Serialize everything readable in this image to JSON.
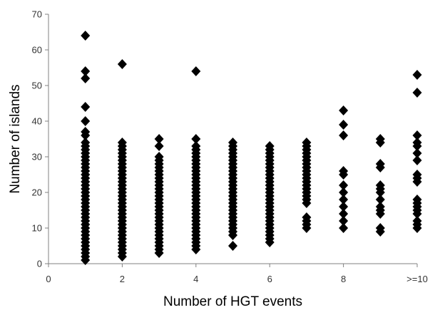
{
  "chart_data": {
    "type": "scatter",
    "title": "",
    "xlabel": "Number of HGT events",
    "ylabel": "Number of islands",
    "xlim": [
      0,
      10
    ],
    "ylim": [
      0,
      70
    ],
    "x_ticks": [
      {
        "value": 0,
        "label": "0"
      },
      {
        "value": 2,
        "label": "2"
      },
      {
        "value": 4,
        "label": "4"
      },
      {
        "value": 6,
        "label": "6"
      },
      {
        "value": 8,
        "label": "8"
      },
      {
        "value": 10,
        "label": ">=10"
      }
    ],
    "y_ticks": [
      {
        "value": 0,
        "label": "0"
      },
      {
        "value": 10,
        "label": "10"
      },
      {
        "value": 20,
        "label": "20"
      },
      {
        "value": 30,
        "label": "30"
      },
      {
        "value": 40,
        "label": "40"
      },
      {
        "value": 50,
        "label": "50"
      },
      {
        "value": 60,
        "label": "60"
      },
      {
        "value": 70,
        "label": "70"
      }
    ],
    "grid": false,
    "legend": "none",
    "marker": "diamond",
    "marker_color": "#000000",
    "series": [
      {
        "points": [
          {
            "x": 1,
            "y": [
              1,
              2,
              3,
              4,
              5,
              6,
              7,
              8,
              9,
              10,
              11,
              12,
              13,
              14,
              15,
              16,
              17,
              18,
              19,
              20,
              21,
              22,
              23,
              24,
              25,
              26,
              27,
              28,
              29,
              30,
              31,
              32,
              33,
              34,
              36,
              37,
              40,
              44,
              52,
              54,
              64
            ]
          },
          {
            "x": 2,
            "y": [
              2,
              3,
              4,
              5,
              6,
              7,
              8,
              9,
              10,
              11,
              12,
              13,
              14,
              15,
              16,
              17,
              18,
              19,
              20,
              21,
              22,
              23,
              24,
              25,
              26,
              27,
              28,
              29,
              30,
              31,
              32,
              33,
              34,
              56
            ]
          },
          {
            "x": 3,
            "y": [
              3,
              4,
              5,
              6,
              7,
              8,
              9,
              10,
              11,
              12,
              13,
              14,
              15,
              16,
              17,
              18,
              19,
              20,
              21,
              22,
              23,
              24,
              25,
              26,
              27,
              28,
              29,
              30,
              33,
              35
            ]
          },
          {
            "x": 4,
            "y": [
              4,
              5,
              6,
              7,
              8,
              9,
              10,
              11,
              12,
              13,
              14,
              15,
              16,
              17,
              18,
              19,
              20,
              21,
              22,
              23,
              24,
              25,
              26,
              27,
              28,
              29,
              30,
              31,
              32,
              33,
              35,
              54
            ]
          },
          {
            "x": 5,
            "y": [
              5,
              8,
              9,
              10,
              11,
              12,
              13,
              14,
              15,
              16,
              17,
              18,
              19,
              20,
              21,
              22,
              23,
              24,
              25,
              26,
              27,
              28,
              29,
              30,
              31,
              32,
              33,
              34
            ]
          },
          {
            "x": 6,
            "y": [
              6,
              7,
              8,
              9,
              10,
              11,
              12,
              13,
              14,
              15,
              16,
              17,
              18,
              19,
              20,
              21,
              22,
              23,
              24,
              25,
              26,
              27,
              28,
              29,
              30,
              31,
              32,
              33
            ]
          },
          {
            "x": 7,
            "y": [
              10,
              11,
              12,
              13,
              17,
              18,
              19,
              20,
              21,
              22,
              23,
              24,
              25,
              26,
              27,
              28,
              29,
              30,
              31,
              32,
              33,
              34
            ]
          },
          {
            "x": 8,
            "y": [
              10,
              12,
              14,
              16,
              18,
              20,
              22,
              25,
              26,
              36,
              39,
              43
            ]
          },
          {
            "x": 9,
            "y": [
              9,
              10,
              14,
              15,
              16,
              18,
              20,
              21,
              22,
              27,
              28,
              34,
              35
            ]
          },
          {
            "x": 10,
            "y": [
              10,
              11,
              12,
              14,
              15,
              16,
              17,
              18,
              23,
              24,
              25,
              29,
              31,
              33,
              34,
              36,
              48,
              53
            ]
          }
        ]
      }
    ]
  }
}
